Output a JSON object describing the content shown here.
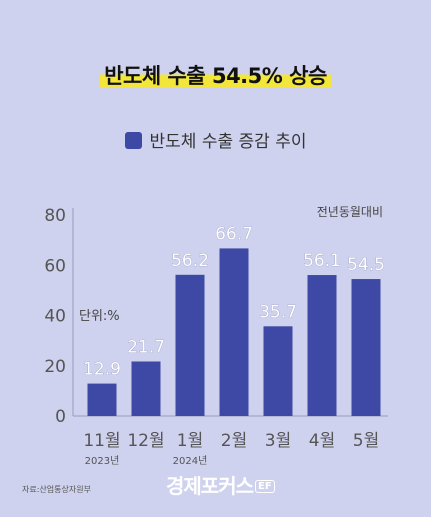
{
  "header": {
    "title": "반도체 수출 54.5% 상승"
  },
  "legend": {
    "label": "반도체 수출 증감 추이"
  },
  "footer": {
    "source": "자료:산업통상자원부",
    "logo_text": "경제포커스",
    "logo_badge": "EF"
  },
  "colors": {
    "bar": "#3d49a5",
    "background": "#cfd2ee",
    "highlight": "#f2e63a"
  },
  "chart_data": {
    "type": "bar",
    "categories": [
      "11월",
      "12월",
      "1월",
      "2월",
      "3월",
      "4월",
      "5월"
    ],
    "year_labels": [
      "2023년",
      "",
      "2024년",
      "",
      "",
      "",
      ""
    ],
    "series": [
      {
        "name": "반도체 수출 증감 추이",
        "values": [
          12.9,
          21.7,
          56.2,
          66.7,
          35.7,
          56.1,
          54.5
        ]
      }
    ],
    "data_labels": [
      "12.9",
      "21.7",
      "56.2",
      "66.7",
      "35.7",
      "56.1",
      "54.5"
    ],
    "yticks": [
      0,
      20,
      40,
      60,
      80
    ],
    "ylim": [
      0,
      80
    ],
    "unit_label": "단위:%",
    "annotation": "전년동월대비",
    "grid": false
  }
}
